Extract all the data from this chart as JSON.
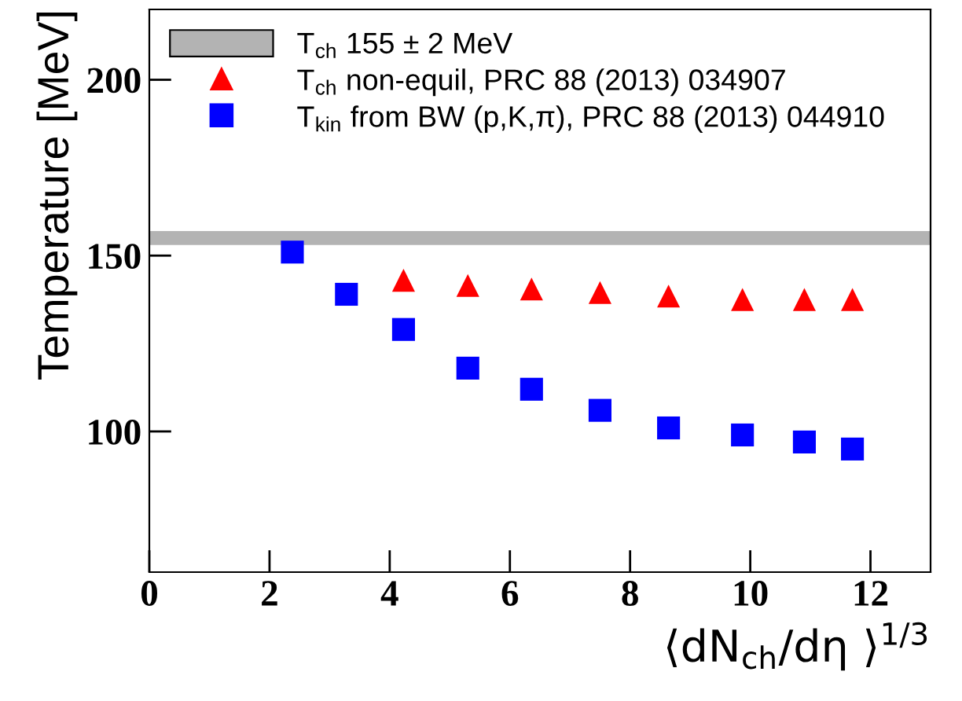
{
  "chart_data": {
    "type": "scatter",
    "xlabel": "⟨dN$_{ch}$/dη ⟩$^{1/3}$",
    "ylabel": "Temperature [MeV]",
    "xlim": [
      0,
      13
    ],
    "xticks": [
      0,
      2,
      4,
      6,
      8,
      10,
      12
    ],
    "ylim": [
      60,
      220
    ],
    "yticks": [
      100,
      150,
      200
    ],
    "grid": false,
    "legend": "top left",
    "bands": [
      {
        "axis": "y",
        "from": 153,
        "to": 157,
        "label": "T$_{ch}$ 155 ± 2 MeV",
        "color": "#b3b3b3"
      }
    ],
    "series": [
      {
        "name": "T$_{ch}$ non-equil, PRC 88 (2013) 034907",
        "color": "#ff0000",
        "marker": "triangle",
        "x": [
          4.23,
          5.3,
          6.36,
          7.5,
          8.64,
          9.87,
          10.9,
          11.7
        ],
        "values": [
          143,
          141.5,
          140.5,
          139.5,
          138.5,
          137.5,
          137.5,
          137.5
        ]
      },
      {
        "name": "T$_{kin}$ from BW (p,K,π), PRC 88 (2013) 044910",
        "color": "#0000ff",
        "marker": "square",
        "x": [
          2.38,
          3.28,
          4.23,
          5.3,
          6.36,
          7.5,
          8.64,
          9.87,
          10.9,
          11.7
        ],
        "values": [
          151,
          139,
          129,
          118,
          112,
          106,
          101,
          99,
          97,
          95
        ]
      }
    ]
  }
}
